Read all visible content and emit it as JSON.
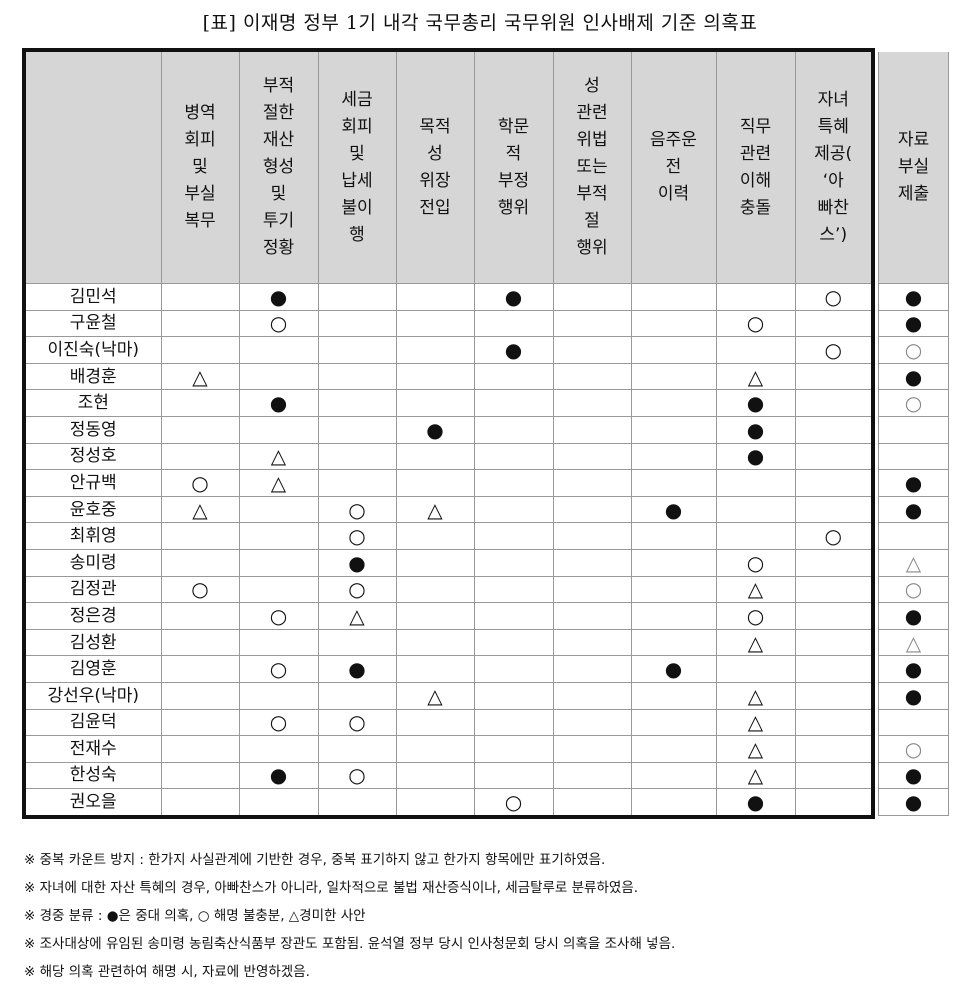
{
  "title": "[표] 이재명 정부 1기 내각 국무총리 국무위원 인사배제 기준 의혹표",
  "headers": [
    "",
    "병역\n회피\n및\n부실\n복무",
    "부적\n절한\n재산\n형성\n및\n투기\n정황",
    "세금\n회피\n및\n납세\n불이\n행",
    "목적\n성\n위장\n전입",
    "학문\n적\n부정\n행위",
    "성\n관련\n위법\n또는\n부적\n절\n행위",
    "음주운\n전\n이력",
    "직무\n관련\n이해\n충돌",
    "자녀\n특혜\n제공(\n‘아\n빠찬\n스’)",
    "자료\n부실\n제출"
  ],
  "rows": [
    {
      "name": "김민석",
      "cells": [
        "",
        "●",
        "",
        "",
        "●",
        "",
        "",
        "",
        "○",
        "●"
      ]
    },
    {
      "name": "구윤철",
      "cells": [
        "",
        "○",
        "",
        "",
        "",
        "",
        "",
        "○",
        "",
        "●"
      ]
    },
    {
      "name": "이진숙(낙마)",
      "cells": [
        "",
        "",
        "",
        "",
        "●",
        "",
        "",
        "",
        "○",
        "○"
      ]
    },
    {
      "name": "배경훈",
      "cells": [
        "△",
        "",
        "",
        "",
        "",
        "",
        "",
        "△",
        "",
        "●"
      ]
    },
    {
      "name": "조현",
      "cells": [
        "",
        "●",
        "",
        "",
        "",
        "",
        "",
        "●",
        "",
        "○"
      ]
    },
    {
      "name": "정동영",
      "cells": [
        "",
        "",
        "",
        "●",
        "",
        "",
        "",
        "●",
        "",
        ""
      ]
    },
    {
      "name": "정성호",
      "cells": [
        "",
        "△",
        "",
        "",
        "",
        "",
        "",
        "●",
        "",
        ""
      ]
    },
    {
      "name": "안규백",
      "cells": [
        "○",
        "△",
        "",
        "",
        "",
        "",
        "",
        "",
        "",
        "●"
      ]
    },
    {
      "name": "윤호중",
      "cells": [
        "△",
        "",
        "○",
        "△",
        "",
        "",
        "●",
        "",
        "",
        "●"
      ]
    },
    {
      "name": "최휘영",
      "cells": [
        "",
        "",
        "○",
        "",
        "",
        "",
        "",
        "",
        "○",
        ""
      ]
    },
    {
      "name": "송미령",
      "cells": [
        "",
        "",
        "●",
        "",
        "",
        "",
        "",
        "○",
        "",
        "△"
      ]
    },
    {
      "name": "김정관",
      "cells": [
        "○",
        "",
        "○",
        "",
        "",
        "",
        "",
        "△",
        "",
        "○"
      ]
    },
    {
      "name": "정은경",
      "cells": [
        "",
        "○",
        "△",
        "",
        "",
        "",
        "",
        "○",
        "",
        "●"
      ]
    },
    {
      "name": "김성환",
      "cells": [
        "",
        "",
        "",
        "",
        "",
        "",
        "",
        "△",
        "",
        "△"
      ]
    },
    {
      "name": "김영훈",
      "cells": [
        "",
        "○",
        "●",
        "",
        "",
        "",
        "●",
        "",
        "",
        "●"
      ]
    },
    {
      "name": "강선우(낙마)",
      "cells": [
        "",
        "",
        "",
        "△",
        "",
        "",
        "",
        "△",
        "",
        "●"
      ]
    },
    {
      "name": "김윤덕",
      "cells": [
        "",
        "○",
        "○",
        "",
        "",
        "",
        "",
        "△",
        "",
        ""
      ]
    },
    {
      "name": "전재수",
      "cells": [
        "",
        "",
        "",
        "",
        "",
        "",
        "",
        "△",
        "",
        "○"
      ]
    },
    {
      "name": "한성숙",
      "cells": [
        "",
        "●",
        "○",
        "",
        "",
        "",
        "",
        "△",
        "",
        "●"
      ]
    },
    {
      "name": "권오을",
      "cells": [
        "",
        "",
        "",
        "",
        "○",
        "",
        "",
        "●",
        "",
        "●"
      ]
    }
  ],
  "notes": [
    "※ 중복 카운트 방지 : 한가지 사실관계에 기반한 경우, 중복 표기하지 않고 한가지 항목에만 표기하였음.",
    "※ 자녀에 대한 자산 특혜의 경우, 아빠찬스가 아니라, 일차적으로 불법 재산증식이나, 세금탈루로 분류하였음.",
    "※ 경중 분류 : ●은 중대 의혹, ○ 해명 불충분, △경미한 사안",
    "※ 조사대상에 유임된 송미령 농림축산식품부 장관도 포함됨. 윤석열 정부 당시 인사청문회 당시 의혹을 조사해 넣음.",
    "※ 해당 의혹 관련하여 해명 시, 자료에 반영하겠음."
  ]
}
